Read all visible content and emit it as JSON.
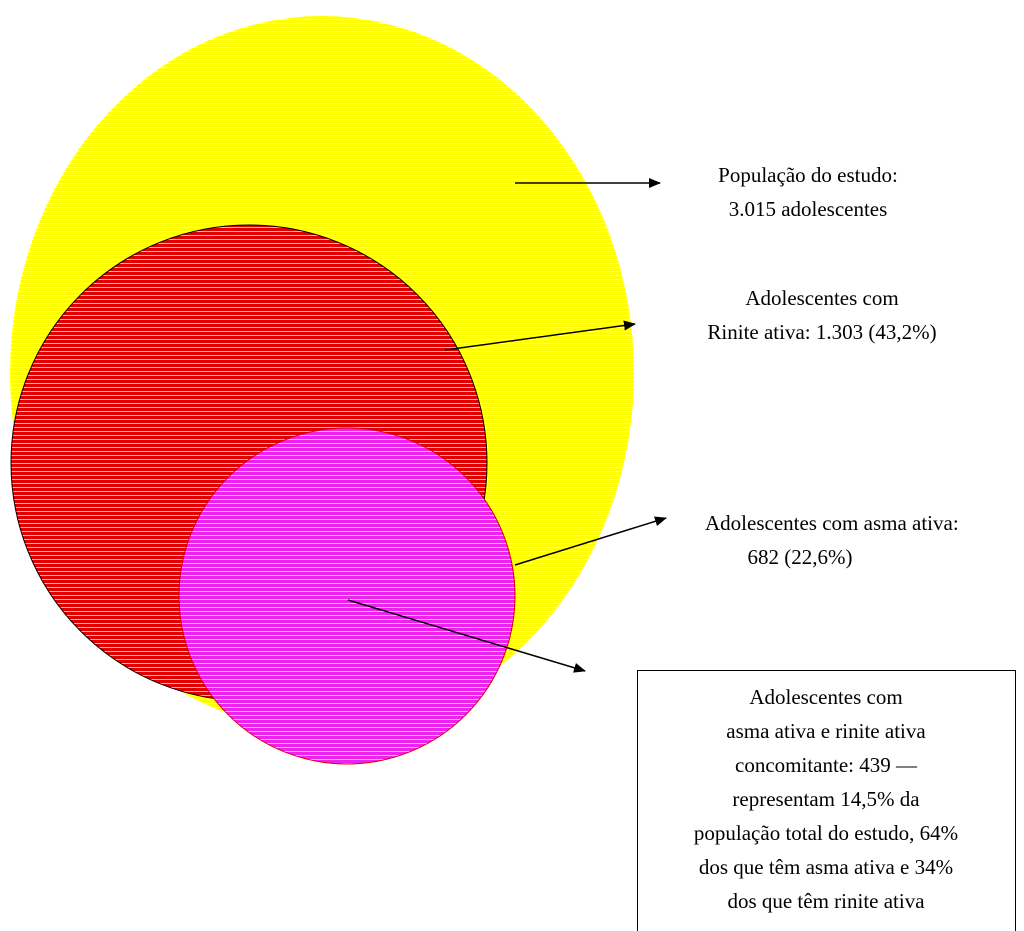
{
  "population_label": {
    "lines": [
      "População do estudo:",
      "3.015 adolescentes"
    ]
  },
  "rhinitis_label": {
    "lines": [
      "Adolescentes com",
      "Rinite ativa: 1.303 (43,2%)"
    ]
  },
  "asthma_label": {
    "lines": [
      "Adolescentes com asma ativa:",
      "682 (22,6%)"
    ]
  },
  "overlap_box": {
    "lines": [
      "Adolescentes com",
      "asma ativa e rinite ativa",
      "concomitante: 439 —",
      "representam 14,5% da",
      "população total do estudo, 64%",
      "dos que têm asma ativa e 34%",
      "dos que têm rinite ativa"
    ]
  }
}
